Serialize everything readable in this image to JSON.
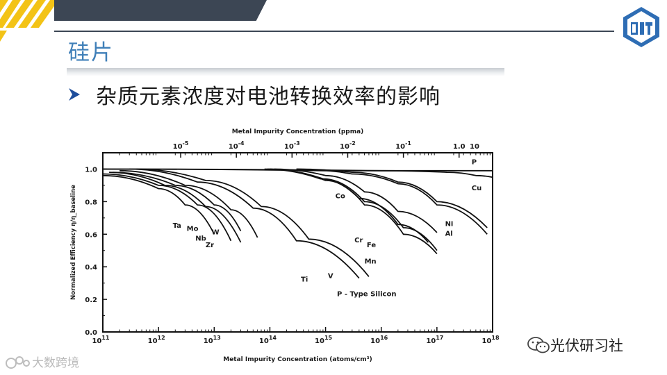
{
  "slide": {
    "title": "硅片",
    "bullet": "杂质元素浓度对电池转换效率的影响"
  },
  "colors": {
    "title_blue": "#3f7fb8",
    "band_dark": "#3c4654",
    "stripe_yellow": "#f3c316",
    "logo_blue": "#2e6db4"
  },
  "watermarks": {
    "left": "大数跨境",
    "right": "光伏研习社"
  },
  "chart_data": {
    "type": "line",
    "title": "Metal Impurity Concentration (ppma)",
    "xlabel": "Metal Impurity Concentration (atoms/cm³)",
    "ylabel": "Normalized Efficiency η/η_baseline",
    "x_scale": "log",
    "xlim": [
      100000000000.0,
      1e+18
    ],
    "ylim": [
      0,
      1.1
    ],
    "y_ticks": [
      "0.0",
      "0.2",
      "0.4",
      "0.6",
      "0.8",
      "1.0"
    ],
    "x_tick_labels": [
      {
        "base": "10",
        "exp": "11"
      },
      {
        "base": "10",
        "exp": "12"
      },
      {
        "base": "10",
        "exp": "13"
      },
      {
        "base": "10",
        "exp": "14"
      },
      {
        "base": "10",
        "exp": "15"
      },
      {
        "base": "10",
        "exp": "16"
      },
      {
        "base": "10",
        "exp": "17"
      },
      {
        "base": "10",
        "exp": "18"
      }
    ],
    "top_tick_labels": [
      {
        "base": "10",
        "exp": "-5",
        "x": 2500000000000.0
      },
      {
        "base": "10",
        "exp": "-4",
        "x": 25000000000000.0
      },
      {
        "base": "10",
        "exp": "-3",
        "x": 250000000000000.0
      },
      {
        "base": "10",
        "exp": "-2",
        "x": 2500000000000000.0
      },
      {
        "base": "10",
        "exp": "-1",
        "x": 2.5e+16
      },
      {
        "base": "1.0",
        "exp": "",
        "x": 2.5e+17
      },
      {
        "base": "10",
        "exp": "",
        "x": 2.5e+18
      }
    ],
    "annotation": "P - Type Silicon",
    "series": [
      {
        "name": "Ta",
        "points": [
          [
            100000000000.0,
            0.96
          ],
          [
            1000000000000.0,
            0.88
          ],
          [
            3000000000000.0,
            0.78
          ],
          [
            10000000000000.0,
            0.6
          ]
        ],
        "label_at": [
          1800000000000.0,
          0.64
        ]
      },
      {
        "name": "Mo",
        "points": [
          [
            100000000000.0,
            0.97
          ],
          [
            1000000000000.0,
            0.9
          ],
          [
            5000000000000.0,
            0.78
          ],
          [
            20000000000000.0,
            0.56
          ]
        ],
        "label_at": [
          3200000000000.0,
          0.62
        ]
      },
      {
        "name": "Nb",
        "points": [
          [
            130000000000.0,
            0.98
          ],
          [
            1300000000000.0,
            0.9
          ],
          [
            7000000000000.0,
            0.77
          ],
          [
            30000000000000.0,
            0.55
          ]
        ],
        "label_at": [
          4600000000000.0,
          0.56
        ]
      },
      {
        "name": "W",
        "points": [
          [
            150000000000.0,
            0.98
          ],
          [
            2000000000000.0,
            0.9
          ],
          [
            10000000000000.0,
            0.78
          ],
          [
            30000000000000.0,
            0.62
          ]
        ],
        "label_at": [
          9000000000000.0,
          0.6
        ]
      },
      {
        "name": "Zr",
        "points": [
          [
            200000000000.0,
            0.99
          ],
          [
            3000000000000.0,
            0.9
          ],
          [
            20000000000000.0,
            0.75
          ],
          [
            60000000000000.0,
            0.58
          ]
        ],
        "label_at": [
          7000000000000.0,
          0.52
        ]
      },
      {
        "name": "Ti",
        "points": [
          [
            300000000000.0,
            1.0
          ],
          [
            5000000000000.0,
            0.92
          ],
          [
            50000000000000.0,
            0.76
          ],
          [
            300000000000000.0,
            0.56
          ],
          [
            4000000000000000.0,
            0.33
          ]
        ],
        "label_at": [
          360000000000000.0,
          0.31
        ]
      },
      {
        "name": "V",
        "points": [
          [
            400000000000.0,
            1.0
          ],
          [
            7000000000000.0,
            0.93
          ],
          [
            70000000000000.0,
            0.77
          ],
          [
            500000000000000.0,
            0.57
          ],
          [
            6000000000000000.0,
            0.34
          ]
        ],
        "label_at": [
          1100000000000000.0,
          0.33
        ]
      },
      {
        "name": "Co",
        "points": [
          [
            120000000000000.0,
            1.0
          ],
          [
            1000000000000000.0,
            0.96
          ],
          [
            5000000000000000.0,
            0.86
          ],
          [
            2e+16,
            0.74
          ],
          [
            1e+17,
            0.61
          ]
        ],
        "label_at": [
          1500000000000000.0,
          0.82
        ]
      },
      {
        "name": "Cr",
        "points": [
          [
            80000000000000.0,
            1.0
          ],
          [
            800000000000000.0,
            0.94
          ],
          [
            4000000000000000.0,
            0.82
          ],
          [
            2e+16,
            0.66
          ],
          [
            7e+16,
            0.55
          ]
        ],
        "label_at": [
          3300000000000000.0,
          0.55
        ]
      },
      {
        "name": "Fe",
        "points": [
          [
            90000000000000.0,
            1.0
          ],
          [
            900000000000000.0,
            0.94
          ],
          [
            5000000000000000.0,
            0.8
          ],
          [
            2.5e+16,
            0.64
          ],
          [
            1e+17,
            0.5
          ]
        ],
        "label_at": [
          5500000000000000.0,
          0.52
        ]
      },
      {
        "name": "Mn",
        "points": [
          [
            100000000000000.0,
            1.0
          ],
          [
            1000000000000000.0,
            0.93
          ],
          [
            5000000000000000.0,
            0.78
          ],
          [
            2.5e+16,
            0.6
          ],
          [
            1e+17,
            0.48
          ]
        ],
        "label_at": [
          5000000000000000.0,
          0.42
        ]
      },
      {
        "name": "Ni",
        "points": [
          [
            300000000000000.0,
            1.0
          ],
          [
            3000000000000000.0,
            0.98
          ],
          [
            2e+16,
            0.92
          ],
          [
            1e+17,
            0.8
          ],
          [
            8e+17,
            0.64
          ]
        ],
        "label_at": [
          1.4e+17,
          0.65
        ]
      },
      {
        "name": "Al",
        "points": [
          [
            300000000000000.0,
            1.0
          ],
          [
            3000000000000000.0,
            0.97
          ],
          [
            2e+16,
            0.91
          ],
          [
            1e+17,
            0.78
          ],
          [
            8e+17,
            0.6
          ]
        ],
        "label_at": [
          1.4e+17,
          0.59
        ]
      },
      {
        "name": "P",
        "points": [
          [
            100000000000.0,
            1.0
          ],
          [
            1000000000000000.0,
            0.99
          ],
          [
            1e+17,
            0.99
          ],
          [
            8e+17,
            0.99
          ],
          [
            1e+18,
            0.99
          ]
        ],
        "label_at": [
          4.2e+17,
          1.03
        ]
      },
      {
        "name": "Cu",
        "points": [
          [
            100000000000.0,
            1.0
          ],
          [
            1e+16,
            0.99
          ],
          [
            1.5e+17,
            0.98
          ],
          [
            5e+17,
            0.96
          ],
          [
            1e+18,
            0.95
          ]
        ],
        "label_at": [
          4.2e+17,
          0.87
        ]
      }
    ]
  }
}
